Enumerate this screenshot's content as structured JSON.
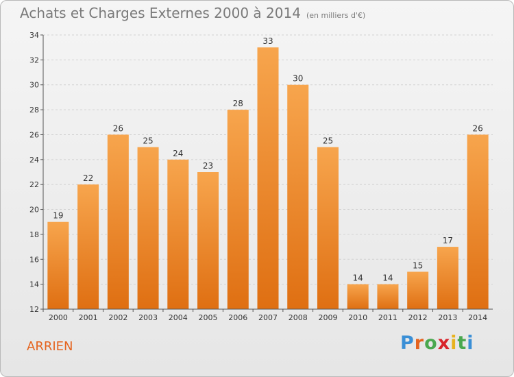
{
  "chart_data": {
    "type": "bar",
    "title": "Achats et Charges Externes 2000 à 2014",
    "subtitle": "(en milliers d'€)",
    "categories": [
      "2000",
      "2001",
      "2002",
      "2003",
      "2004",
      "2005",
      "2006",
      "2007",
      "2008",
      "2009",
      "2010",
      "2011",
      "2012",
      "2013",
      "2014"
    ],
    "values": [
      19,
      22,
      26,
      25,
      24,
      23,
      28,
      33,
      30,
      25,
      14,
      14,
      15,
      17,
      26
    ],
    "ylim": [
      12,
      34
    ],
    "yticks": [
      12,
      14,
      16,
      18,
      20,
      22,
      24,
      26,
      28,
      30,
      32,
      34
    ],
    "grid": true,
    "bar_color": "#f08a2c"
  },
  "commune": "ARRIEN",
  "logo": {
    "text": "Proxiti",
    "letter_colors": [
      "#3a8fd6",
      "#e5631e",
      "#4aa84f",
      "#d8232a",
      "#e8b21c",
      "#4aa84f",
      "#3a8fd6"
    ]
  }
}
